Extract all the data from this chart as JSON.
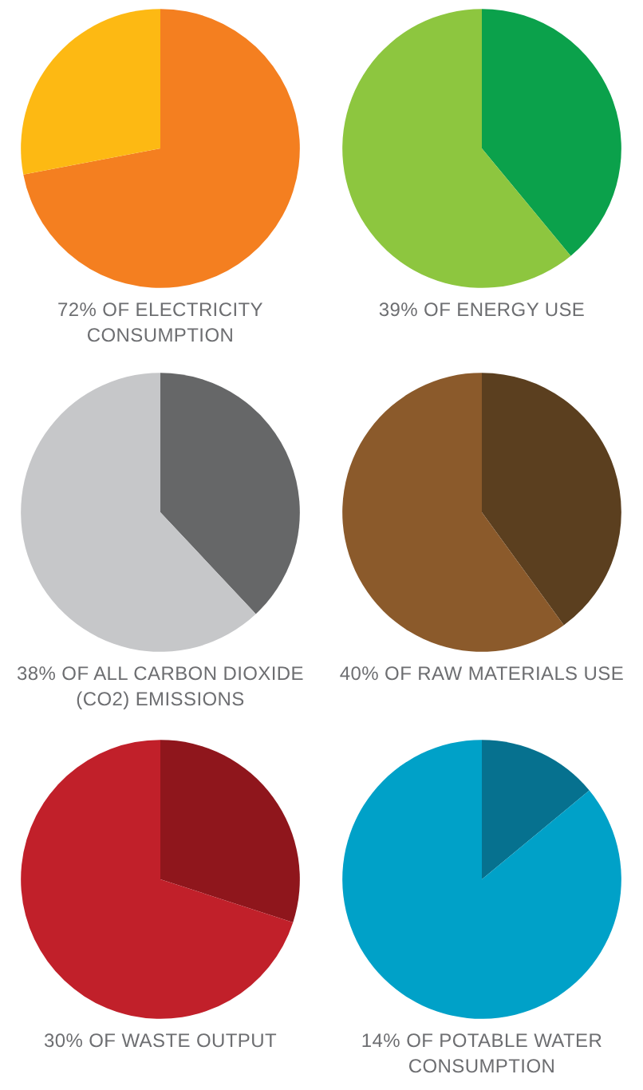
{
  "chart_data": [
    {
      "type": "pie",
      "title": "72% OF ELECTRICITY CONSUMPTION",
      "categories": [
        null,
        null
      ],
      "values": [
        72,
        28
      ],
      "colors": [
        "#f47f20",
        "#fdb913"
      ]
    },
    {
      "type": "pie",
      "title": "39% OF ENERGY USE",
      "categories": [
        null,
        null
      ],
      "values": [
        39,
        61
      ],
      "colors": [
        "#0ba14b",
        "#8dc63f"
      ]
    },
    {
      "type": "pie",
      "title": "38% OF ALL CARBON DIOXIDE (CO2) EMISSIONS",
      "categories": [
        null,
        null
      ],
      "values": [
        38,
        62
      ],
      "colors": [
        "#666768",
        "#c6c7c9"
      ]
    },
    {
      "type": "pie",
      "title": "40% OF RAW MATERIALS USE",
      "categories": [
        null,
        null
      ],
      "values": [
        40,
        60
      ],
      "colors": [
        "#5b3f1f",
        "#8b5a2b"
      ]
    },
    {
      "type": "pie",
      "title": "30% OF WASTE OUTPUT",
      "categories": [
        null,
        null
      ],
      "values": [
        30,
        70
      ],
      "colors": [
        "#8f161c",
        "#c1202a"
      ]
    },
    {
      "type": "pie",
      "title": "14% OF POTABLE WATER CONSUMPTION",
      "categories": [
        null,
        null
      ],
      "values": [
        14,
        86
      ],
      "colors": [
        "#06718f",
        "#00a1c8"
      ]
    }
  ]
}
